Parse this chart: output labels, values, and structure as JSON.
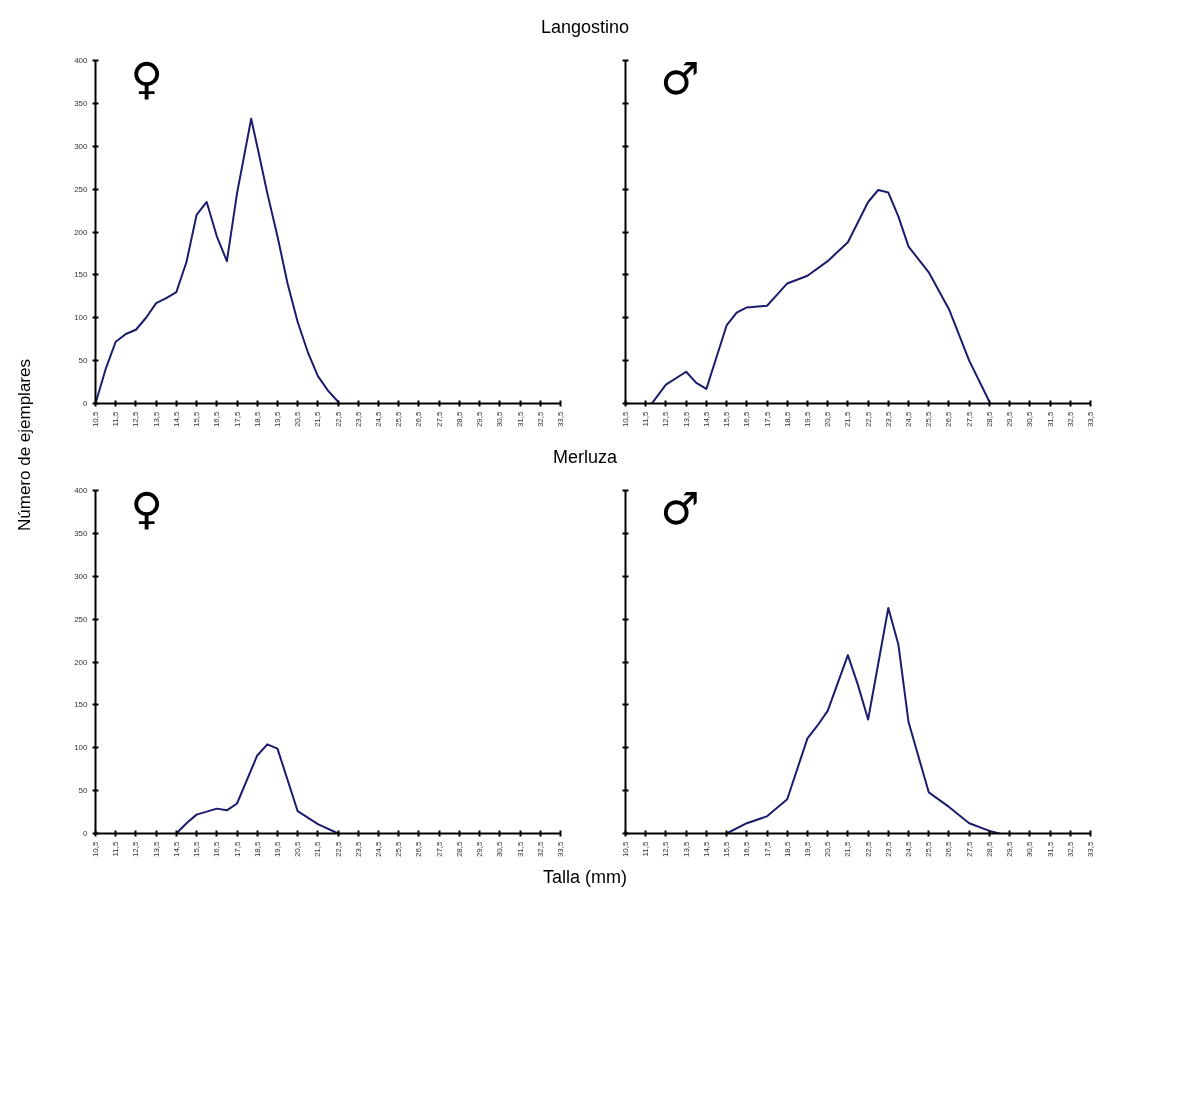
{
  "chart_data": [
    {
      "type": "line",
      "title": "Langostino",
      "ylabel": "Número de ejemplares",
      "annotations": [
        "♀"
      ],
      "color": "#1c1c6e",
      "x": [
        10.5,
        11.0,
        11.5,
        12.0,
        12.5,
        13.0,
        13.5,
        14.0,
        14.5,
        15.0,
        15.5,
        16.0,
        16.5,
        17.0,
        17.5,
        18.2,
        18.5,
        19.0,
        19.5,
        20.0,
        20.5,
        21.0,
        21.5,
        22.0,
        22.5
      ],
      "values": [
        0,
        40,
        72,
        81,
        86,
        100,
        117,
        123,
        130,
        165,
        220,
        235,
        195,
        166,
        245,
        332,
        300,
        245,
        195,
        140,
        95,
        60,
        32,
        15,
        2
      ],
      "xlim": [
        10.5,
        33.5
      ],
      "ylim": [
        0,
        400
      ],
      "yticks": [
        0,
        50,
        100,
        150,
        200,
        250,
        300,
        350,
        400
      ],
      "xticks": [
        {
          "value": 10.5,
          "label": "10,5"
        },
        {
          "value": 11.5,
          "label": "11,5"
        },
        {
          "value": 12.5,
          "label": "12,5"
        },
        {
          "value": 13.5,
          "label": "13,5"
        },
        {
          "value": 14.5,
          "label": "14,5"
        },
        {
          "value": 15.5,
          "label": "15,5"
        },
        {
          "value": 16.5,
          "label": "16,5"
        },
        {
          "value": 17.5,
          "label": "17,5"
        },
        {
          "value": 18.5,
          "label": "18,5"
        },
        {
          "value": 19.5,
          "label": "19,5"
        },
        {
          "value": 20.5,
          "label": "20,5"
        },
        {
          "value": 21.5,
          "label": "21,5"
        },
        {
          "value": 22.5,
          "label": "22,5"
        },
        {
          "value": 23.5,
          "label": "23,5"
        },
        {
          "value": 24.5,
          "label": "24,5"
        },
        {
          "value": 25.5,
          "label": "25,5"
        },
        {
          "value": 26.5,
          "label": "26,5"
        },
        {
          "value": 27.5,
          "label": "27,5"
        },
        {
          "value": 28.5,
          "label": "28,5"
        },
        {
          "value": 29.5,
          "label": "29,5"
        },
        {
          "value": 30.5,
          "label": "30,5"
        },
        {
          "value": 31.5,
          "label": "31,5"
        },
        {
          "value": 32.5,
          "label": "32,5"
        },
        {
          "value": 33.5,
          "label": "33,5"
        }
      ]
    },
    {
      "type": "line",
      "annotations": [
        "♂"
      ],
      "color": "#1c1c6e",
      "tick_labels": "x",
      "x": [
        11.8,
        12.5,
        13.5,
        14.0,
        14.5,
        15.0,
        15.5,
        16.0,
        16.5,
        17.5,
        18.0,
        18.5,
        19.5,
        20.5,
        21.5,
        22.5,
        23.0,
        23.5,
        24.0,
        24.5,
        25.5,
        26.5,
        27.5,
        28.5
      ],
      "values": [
        0,
        22,
        37,
        24,
        17,
        54,
        91,
        106,
        112,
        114,
        127,
        140,
        149,
        166,
        188,
        235,
        249,
        246,
        218,
        183,
        153,
        110,
        50,
        2
      ],
      "xlim": [
        10.5,
        33.5
      ],
      "ylim": [
        0,
        400
      ],
      "yticks": [
        {
          "value": 0,
          "label": null
        },
        {
          "value": 50,
          "label": null
        },
        {
          "value": 100,
          "label": null
        },
        {
          "value": 150,
          "label": null
        },
        {
          "value": 200,
          "label": null
        },
        {
          "value": 250,
          "label": null
        },
        {
          "value": 300,
          "label": null
        },
        {
          "value": 350,
          "label": null
        },
        {
          "value": 400,
          "label": null
        }
      ],
      "xticks": [
        {
          "value": 10.5,
          "label": "10,5"
        },
        {
          "value": 11.5,
          "label": "11,5"
        },
        {
          "value": 12.5,
          "label": "12,5"
        },
        {
          "value": 13.5,
          "label": "13,5"
        },
        {
          "value": 14.5,
          "label": "14,5"
        },
        {
          "value": 15.5,
          "label": "15,5"
        },
        {
          "value": 16.5,
          "label": "16,5"
        },
        {
          "value": 17.5,
          "label": "17,5"
        },
        {
          "value": 18.5,
          "label": "18,5"
        },
        {
          "value": 19.5,
          "label": "19,5"
        },
        {
          "value": 20.5,
          "label": "20,5"
        },
        {
          "value": 21.5,
          "label": "21,5"
        },
        {
          "value": 22.5,
          "label": "22,5"
        },
        {
          "value": 23.5,
          "label": "23,5"
        },
        {
          "value": 24.5,
          "label": "24,5"
        },
        {
          "value": 25.5,
          "label": "25,5"
        },
        {
          "value": 26.5,
          "label": "26,5"
        },
        {
          "value": 27.5,
          "label": "27,5"
        },
        {
          "value": 28.5,
          "label": "28,5"
        },
        {
          "value": 29.5,
          "label": "29,5"
        },
        {
          "value": 30.5,
          "label": "30,5"
        },
        {
          "value": 31.5,
          "label": "31,5"
        },
        {
          "value": 32.5,
          "label": "32,5"
        },
        {
          "value": 33.5,
          "label": "33,5"
        }
      ]
    },
    {
      "type": "line",
      "title": "Merluza",
      "xlabel": "Talla (mm)",
      "annotations": [
        "♀"
      ],
      "color": "#1c1c6e",
      "x": [
        14.5,
        15.0,
        15.5,
        16.5,
        17.0,
        17.5,
        18.5,
        19.0,
        19.5,
        20.5,
        21.5,
        22.5
      ],
      "values": [
        0,
        12,
        22,
        29,
        27,
        35,
        91,
        104,
        99,
        26,
        11,
        0
      ],
      "xlim": [
        10.5,
        33.5
      ],
      "ylim": [
        0,
        400
      ],
      "yticks": [
        0,
        50,
        100,
        150,
        200,
        250,
        300,
        350,
        400
      ],
      "xticks": [
        {
          "value": 10.5,
          "label": "10,5"
        },
        {
          "value": 11.5,
          "label": "11,5"
        },
        {
          "value": 12.5,
          "label": "12,5"
        },
        {
          "value": 13.5,
          "label": "13,5"
        },
        {
          "value": 14.5,
          "label": "14,5"
        },
        {
          "value": 15.5,
          "label": "15,5"
        },
        {
          "value": 16.5,
          "label": "16,5"
        },
        {
          "value": 17.5,
          "label": "17,5"
        },
        {
          "value": 18.5,
          "label": "18,5"
        },
        {
          "value": 19.5,
          "label": "19,5"
        },
        {
          "value": 20.5,
          "label": "20,5"
        },
        {
          "value": 21.5,
          "label": "21,5"
        },
        {
          "value": 22.5,
          "label": "22,5"
        },
        {
          "value": 23.5,
          "label": "23,5"
        },
        {
          "value": 24.5,
          "label": "24,5"
        },
        {
          "value": 25.5,
          "label": "25,5"
        },
        {
          "value": 26.5,
          "label": "26,5"
        },
        {
          "value": 27.5,
          "label": "27,5"
        },
        {
          "value": 28.5,
          "label": "28,5"
        },
        {
          "value": 29.5,
          "label": "29,5"
        },
        {
          "value": 30.5,
          "label": "30,5"
        },
        {
          "value": 31.5,
          "label": "31,5"
        },
        {
          "value": 32.5,
          "label": "32,5"
        },
        {
          "value": 33.5,
          "label": "33,5"
        }
      ]
    },
    {
      "type": "line",
      "annotations": [
        "♂"
      ],
      "color": "#1c1c6e",
      "tick_labels": "x",
      "x": [
        15.5,
        16.5,
        17.5,
        18.5,
        19.5,
        20.0,
        20.5,
        21.5,
        22.0,
        22.5,
        23.5,
        24.0,
        24.5,
        25.5,
        26.5,
        27.5,
        28.5,
        29.0
      ],
      "values": [
        0,
        12,
        20,
        40,
        111,
        126,
        143,
        208,
        173,
        133,
        263,
        220,
        130,
        48,
        31,
        12,
        3,
        0
      ],
      "xlim": [
        10.5,
        33.5
      ],
      "ylim": [
        0,
        400
      ],
      "yticks": [
        {
          "value": 0,
          "label": null
        },
        {
          "value": 50,
          "label": null
        },
        {
          "value": 100,
          "label": null
        },
        {
          "value": 150,
          "label": null
        },
        {
          "value": 200,
          "label": null
        },
        {
          "value": 250,
          "label": null
        },
        {
          "value": 300,
          "label": null
        },
        {
          "value": 350,
          "label": null
        },
        {
          "value": 400,
          "label": null
        }
      ],
      "xticks": [
        {
          "value": 10.5,
          "label": "10,5"
        },
        {
          "value": 11.5,
          "label": "11,5"
        },
        {
          "value": 12.5,
          "label": "12,5"
        },
        {
          "value": 13.5,
          "label": "13,5"
        },
        {
          "value": 14.5,
          "label": "14,5"
        },
        {
          "value": 15.5,
          "label": "15,5"
        },
        {
          "value": 16.5,
          "label": "16,5"
        },
        {
          "value": 17.5,
          "label": "17,5"
        },
        {
          "value": 18.5,
          "label": "18,5"
        },
        {
          "value": 19.5,
          "label": "19,5"
        },
        {
          "value": 20.5,
          "label": "20,5"
        },
        {
          "value": 21.5,
          "label": "21,5"
        },
        {
          "value": 22.5,
          "label": "22,5"
        },
        {
          "value": 23.5,
          "label": "23,5"
        },
        {
          "value": 24.5,
          "label": "24,5"
        },
        {
          "value": 25.5,
          "label": "25,5"
        },
        {
          "value": 26.5,
          "label": "26,5"
        },
        {
          "value": 27.5,
          "label": "27,5"
        },
        {
          "value": 28.5,
          "label": "28,5"
        },
        {
          "value": 29.5,
          "label": "29,5"
        },
        {
          "value": 30.5,
          "label": "30,5"
        },
        {
          "value": 31.5,
          "label": "31,5"
        },
        {
          "value": 32.5,
          "label": "32,5"
        },
        {
          "value": 33.5,
          "label": "33,5"
        }
      ]
    }
  ]
}
